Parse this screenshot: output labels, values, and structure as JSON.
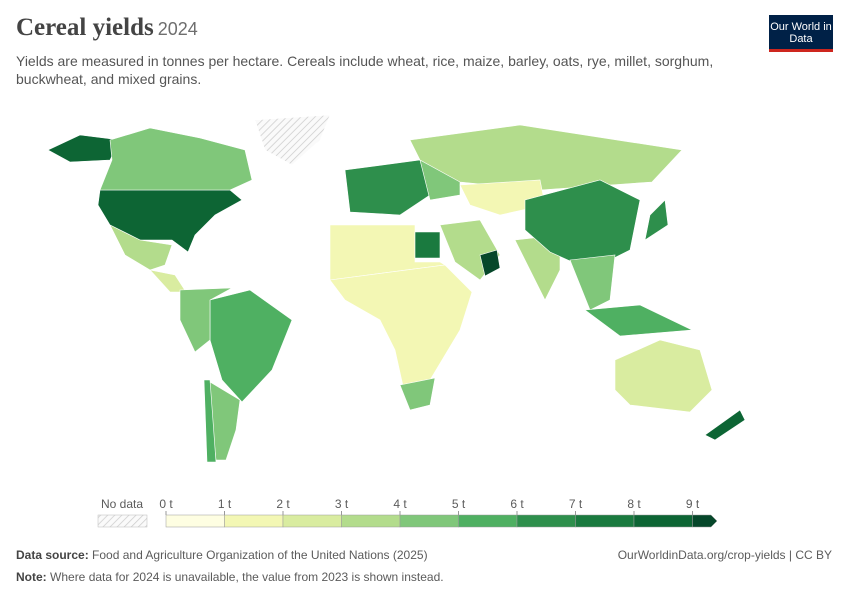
{
  "header": {
    "title": "Cereal yields",
    "year": "2024",
    "subtitle": "Yields are measured in tonnes per hectare. Cereals include wheat, rice, maize, barley, oats, rye, millet, sorghum, buckwheat, and mixed grains.",
    "logo": "Our World in Data"
  },
  "map": {
    "values": [
      8.3,
      4.0,
      3.9,
      2.0,
      5.6,
      4.6,
      4.3,
      5.8,
      null,
      6.8,
      4.8,
      3.2,
      1.5,
      1.2,
      7.5,
      1.3,
      4.6,
      3.3,
      3.3,
      6.4,
      6.8,
      4.6,
      5.0,
      2.2,
      8.2,
      9.5
    ]
  },
  "legend": {
    "no_data_label": "No data",
    "ticks": [
      {
        "value": 0,
        "label": "0 t"
      },
      {
        "value": 1,
        "label": "1 t"
      },
      {
        "value": 2,
        "label": "2 t"
      },
      {
        "value": 3,
        "label": "3 t"
      },
      {
        "value": 4,
        "label": "4 t"
      },
      {
        "value": 5,
        "label": "5 t"
      },
      {
        "value": 6,
        "label": "6 t"
      },
      {
        "value": 7,
        "label": "7 t"
      },
      {
        "value": 8,
        "label": "8 t"
      },
      {
        "value": 9,
        "label": "9 t"
      }
    ],
    "colors": [
      "#fefee2",
      "#f3f7b4",
      "#d9eca0",
      "#b3dc8c",
      "#80c77a",
      "#4fb062",
      "#2e8f4c",
      "#1a7a3f",
      "#0d6534",
      "#06472a"
    ]
  },
  "footer": {
    "source_label": "Data source:",
    "source_text": "Food and Agriculture Organization of the United Nations (2025)",
    "url": "OurWorldinData.org/crop-yields | CC BY",
    "note_label": "Note:",
    "note_text": "Where data for 2024 is unavailable, the value from 2023 is shown instead."
  }
}
